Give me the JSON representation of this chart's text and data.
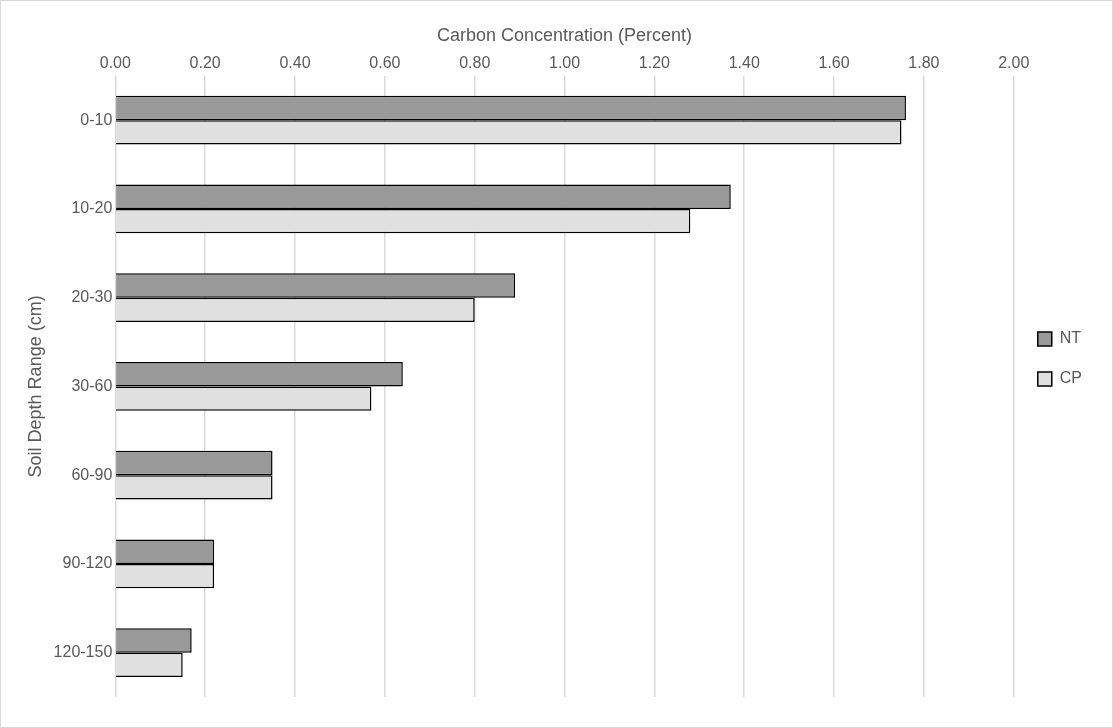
{
  "chart_data": {
    "type": "bar",
    "orientation": "horizontal",
    "xlabel": "Carbon Concentration (Percent)",
    "ylabel": "Soil Depth Range (cm)",
    "categories": [
      "0-10",
      "10-20",
      "20-30",
      "30-60",
      "60-90",
      "90-120",
      "120-150"
    ],
    "series": [
      {
        "name": "NT",
        "color": "#999999",
        "values": [
          1.76,
          1.37,
          0.89,
          0.64,
          0.35,
          0.22,
          0.17
        ]
      },
      {
        "name": "CP",
        "color": "#e0e0e0",
        "values": [
          1.75,
          1.28,
          0.8,
          0.57,
          0.35,
          0.22,
          0.15
        ]
      }
    ],
    "xlim": [
      0,
      2
    ],
    "xticks": [
      {
        "value": 0,
        "label": "0.00"
      },
      {
        "value": 0.2,
        "label": "0.20"
      },
      {
        "value": 0.4,
        "label": "0.40"
      },
      {
        "value": 0.6,
        "label": "0.60"
      },
      {
        "value": 0.8,
        "label": "0.80"
      },
      {
        "value": 1,
        "label": "1.00"
      },
      {
        "value": 1.2,
        "label": "1.20"
      },
      {
        "value": 1.4,
        "label": "1.40"
      },
      {
        "value": 1.6,
        "label": "1.60"
      },
      {
        "value": 1.8,
        "label": "1.80"
      },
      {
        "value": 2,
        "label": "2.00"
      }
    ],
    "grid": "x",
    "legend": "right"
  }
}
